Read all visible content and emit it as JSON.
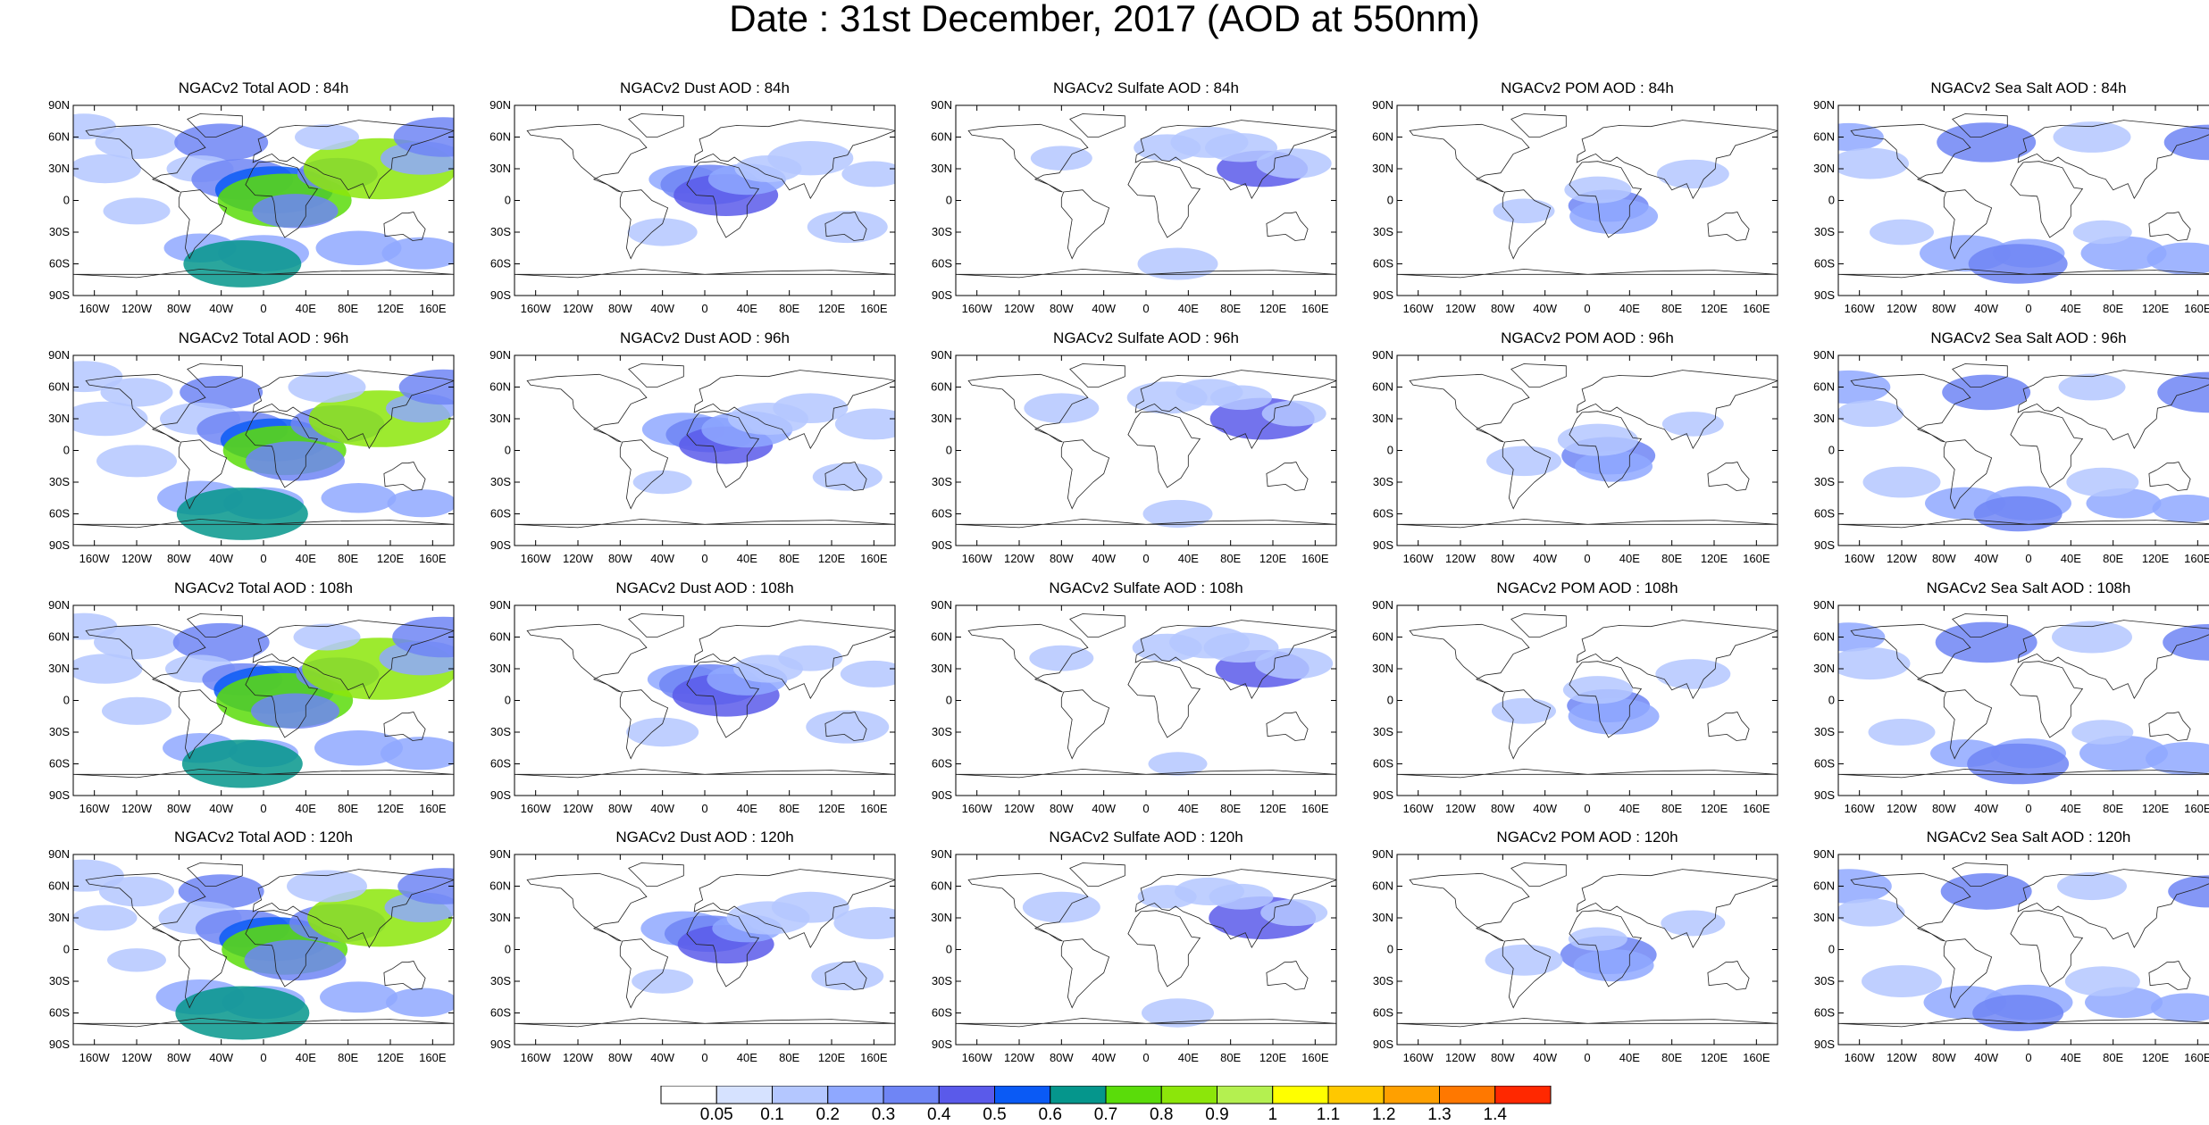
{
  "title": "Date : 31st December, 2017 (AOD at 550nm)",
  "lat_labels": [
    "90N",
    "60N",
    "30N",
    "0",
    "30S",
    "60S",
    "90S"
  ],
  "lon_labels": [
    "160W",
    "120W",
    "80W",
    "40W",
    "0",
    "40E",
    "80E",
    "120E",
    "160E"
  ],
  "columns": [
    {
      "label": "NGACv2 Total AOD",
      "key": "total"
    },
    {
      "label": "NGACv2 Dust AOD",
      "key": "dust"
    },
    {
      "label": "NGACv2 Sulfate AOD",
      "key": "sulfate"
    },
    {
      "label": "NGACv2 POM AOD",
      "key": "pom"
    },
    {
      "label": "NGACv2 Sea Salt AOD",
      "key": "seasalt"
    }
  ],
  "panel_titles": [
    [
      "NGACv2 Total AOD : 84h",
      "NGACv2 Dust AOD : 84h",
      "NGACv2 Sulfate AOD : 84h",
      "NGACv2 POM AOD : 84h",
      "NGACv2 Sea Salt AOD : 84h"
    ],
    [
      "NGACv2 Total AOD : 96h",
      "NGACv2 Dust AOD : 96h",
      "NGACv2 Sulfate AOD : 96h",
      "NGACv2 POM AOD : 96h",
      "NGACv2 Sea Salt AOD : 96h"
    ],
    [
      "NGACv2 Total AOD : 108h",
      "NGACv2 Dust AOD : 108h",
      "NGACv2 Sulfate AOD : 108h",
      "NGACv2 POM AOD : 108h",
      "NGACv2 Sea Salt AOD : 108h"
    ],
    [
      "NGACv2 Total AOD : 120h",
      "NGACv2 Dust AOD : 120h",
      "NGACv2 Sulfate AOD : 120h",
      "NGACv2 POM AOD : 120h",
      "NGACv2 Sea Salt  AOD : 120h"
    ]
  ],
  "colorbar": {
    "labels": [
      "0.05",
      "0.1",
      "0.2",
      "0.3",
      "0.4",
      "0.5",
      "0.6",
      "0.7",
      "0.8",
      "0.9",
      "1",
      "1.1",
      "1.2",
      "1.3",
      "1.4"
    ],
    "colors": [
      "#ffffff",
      "#d6e2ff",
      "#b4c7ff",
      "#8fa8ff",
      "#6f85f5",
      "#5a5aea",
      "#0a5af5",
      "#05968c",
      "#5adc0a",
      "#8ce60a",
      "#b4f050",
      "#ffff00",
      "#ffc800",
      "#ffa000",
      "#ff7800",
      "#ff2800"
    ]
  },
  "fields": {
    "total": [
      {
        "lon": -170,
        "lat": 70,
        "v": 0.15
      },
      {
        "lon": -120,
        "lat": 55,
        "v": 0.15
      },
      {
        "lon": -40,
        "lat": 55,
        "v": 0.3
      },
      {
        "lon": -150,
        "lat": 30,
        "v": 0.15
      },
      {
        "lon": -60,
        "lat": 30,
        "v": 0.15
      },
      {
        "lon": -20,
        "lat": 20,
        "v": 0.3
      },
      {
        "lon": 10,
        "lat": 10,
        "v": 0.5
      },
      {
        "lon": 20,
        "lat": 0,
        "v": 0.7
      },
      {
        "lon": 30,
        "lat": -10,
        "v": 0.3
      },
      {
        "lon": 70,
        "lat": 25,
        "v": 0.3
      },
      {
        "lon": 110,
        "lat": 30,
        "v": 0.8
      },
      {
        "lon": 150,
        "lat": 40,
        "v": 0.2
      },
      {
        "lon": -120,
        "lat": -10,
        "v": 0.1
      },
      {
        "lon": -60,
        "lat": -45,
        "v": 0.2
      },
      {
        "lon": 0,
        "lat": -50,
        "v": 0.2
      },
      {
        "lon": 90,
        "lat": -45,
        "v": 0.2
      },
      {
        "lon": 150,
        "lat": -50,
        "v": 0.2
      },
      {
        "lon": -20,
        "lat": -60,
        "v": 0.6
      },
      {
        "lon": 60,
        "lat": 60,
        "v": 0.15
      },
      {
        "lon": 170,
        "lat": 60,
        "v": 0.3
      }
    ],
    "dust": [
      {
        "lon": -20,
        "lat": 20,
        "v": 0.2
      },
      {
        "lon": 5,
        "lat": 15,
        "v": 0.3
      },
      {
        "lon": 20,
        "lat": 5,
        "v": 0.4
      },
      {
        "lon": 40,
        "lat": 20,
        "v": 0.2
      },
      {
        "lon": 60,
        "lat": 30,
        "v": 0.15
      },
      {
        "lon": 100,
        "lat": 40,
        "v": 0.15
      },
      {
        "lon": 135,
        "lat": -25,
        "v": 0.15
      },
      {
        "lon": -40,
        "lat": -30,
        "v": 0.1
      },
      {
        "lon": 160,
        "lat": 25,
        "v": 0.1
      }
    ],
    "sulfate": [
      {
        "lon": 110,
        "lat": 30,
        "v": 0.4
      },
      {
        "lon": 60,
        "lat": 55,
        "v": 0.1
      },
      {
        "lon": 90,
        "lat": 50,
        "v": 0.1
      },
      {
        "lon": 20,
        "lat": 50,
        "v": 0.1
      },
      {
        "lon": -80,
        "lat": 40,
        "v": 0.1
      },
      {
        "lon": 30,
        "lat": -60,
        "v": 0.1
      },
      {
        "lon": 140,
        "lat": 35,
        "v": 0.1
      }
    ],
    "pom": [
      {
        "lon": 20,
        "lat": -5,
        "v": 0.3
      },
      {
        "lon": 25,
        "lat": -15,
        "v": 0.2
      },
      {
        "lon": 100,
        "lat": 25,
        "v": 0.1
      },
      {
        "lon": 10,
        "lat": 10,
        "v": 0.1
      },
      {
        "lon": -60,
        "lat": -10,
        "v": 0.1
      }
    ],
    "seasalt": [
      {
        "lon": -170,
        "lat": 60,
        "v": 0.2
      },
      {
        "lon": -40,
        "lat": 55,
        "v": 0.3
      },
      {
        "lon": -150,
        "lat": 35,
        "v": 0.15
      },
      {
        "lon": 170,
        "lat": 55,
        "v": 0.3
      },
      {
        "lon": 0,
        "lat": -50,
        "v": 0.2
      },
      {
        "lon": -60,
        "lat": -50,
        "v": 0.2
      },
      {
        "lon": 90,
        "lat": -50,
        "v": 0.2
      },
      {
        "lon": 150,
        "lat": -55,
        "v": 0.2
      },
      {
        "lon": -120,
        "lat": -30,
        "v": 0.1
      },
      {
        "lon": 70,
        "lat": -30,
        "v": 0.1
      },
      {
        "lon": -10,
        "lat": -60,
        "v": 0.3
      },
      {
        "lon": 60,
        "lat": 60,
        "v": 0.15
      }
    ]
  }
}
